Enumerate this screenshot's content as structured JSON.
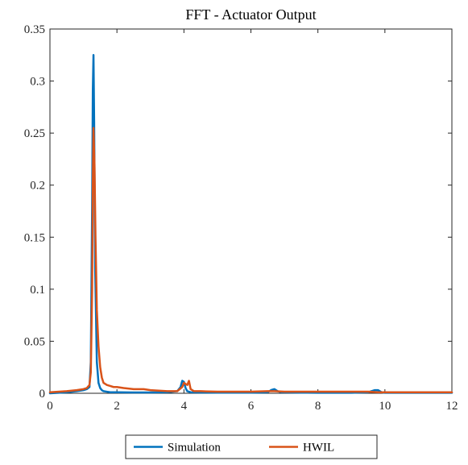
{
  "chart_data": {
    "type": "line",
    "title": "FFT - Actuator Output",
    "xlabel": "",
    "ylabel": "",
    "xlim": [
      0,
      12
    ],
    "ylim": [
      0,
      0.35
    ],
    "xticks": [
      0,
      2,
      4,
      6,
      8,
      10,
      12
    ],
    "yticks": [
      0,
      0.05,
      0.1,
      0.15,
      0.2,
      0.25,
      0.3,
      0.35
    ],
    "xtick_labels": [
      "0",
      "2",
      "4",
      "6",
      "8",
      "10",
      "12"
    ],
    "ytick_labels": [
      "0",
      "0.05",
      "0.1",
      "0.15",
      "0.2",
      "0.25",
      "0.3",
      "0.35"
    ],
    "grid": false,
    "legend_position": "bottom-outside",
    "series": [
      {
        "name": "Simulation",
        "color": "#0072BD",
        "x": [
          0,
          0.5,
          0.8,
          1.0,
          1.1,
          1.18,
          1.22,
          1.26,
          1.28,
          1.3,
          1.32,
          1.35,
          1.4,
          1.45,
          1.5,
          1.55,
          1.6,
          1.7,
          1.8,
          2.0,
          2.5,
          3.0,
          3.5,
          3.8,
          3.9,
          3.95,
          4.0,
          4.05,
          4.1,
          4.2,
          4.5,
          5.0,
          5.5,
          6.0,
          6.5,
          6.6,
          6.7,
          6.8,
          6.9,
          7.5,
          8.0,
          8.5,
          9.0,
          9.5,
          9.7,
          9.8,
          9.9,
          10.0,
          10.5,
          11.0,
          11.5,
          12.0
        ],
        "values": [
          0.0,
          0.001,
          0.002,
          0.003,
          0.004,
          0.006,
          0.03,
          0.18,
          0.29,
          0.325,
          0.26,
          0.12,
          0.03,
          0.01,
          0.005,
          0.003,
          0.002,
          0.0015,
          0.001,
          0.001,
          0.0008,
          0.0008,
          0.001,
          0.002,
          0.006,
          0.012,
          0.011,
          0.005,
          0.002,
          0.001,
          0.0008,
          0.0006,
          0.0006,
          0.0006,
          0.001,
          0.003,
          0.004,
          0.002,
          0.001,
          0.0006,
          0.0005,
          0.0005,
          0.0005,
          0.001,
          0.003,
          0.003,
          0.001,
          0.0005,
          0.0005,
          0.0005,
          0.0005,
          0.0005
        ]
      },
      {
        "name": "HWIL",
        "color": "#D95319",
        "x": [
          0,
          0.5,
          0.8,
          1.0,
          1.1,
          1.18,
          1.22,
          1.26,
          1.28,
          1.3,
          1.33,
          1.36,
          1.4,
          1.45,
          1.5,
          1.55,
          1.6,
          1.7,
          1.8,
          1.9,
          2.0,
          2.2,
          2.5,
          2.8,
          3.0,
          3.5,
          3.8,
          3.95,
          4.0,
          4.05,
          4.1,
          4.15,
          4.2,
          4.3,
          4.5,
          5.0,
          5.5,
          6.0,
          6.5,
          6.7,
          7.0,
          7.5,
          8.0,
          8.5,
          9.0,
          9.5,
          9.8,
          10.0,
          10.5,
          11.0,
          11.5,
          12.0
        ],
        "values": [
          0.001,
          0.002,
          0.003,
          0.004,
          0.005,
          0.008,
          0.02,
          0.1,
          0.2,
          0.255,
          0.22,
          0.15,
          0.08,
          0.045,
          0.025,
          0.015,
          0.01,
          0.008,
          0.007,
          0.006,
          0.006,
          0.005,
          0.004,
          0.004,
          0.003,
          0.002,
          0.002,
          0.006,
          0.01,
          0.009,
          0.008,
          0.012,
          0.004,
          0.002,
          0.002,
          0.0015,
          0.0015,
          0.0015,
          0.002,
          0.002,
          0.0015,
          0.0015,
          0.0015,
          0.0015,
          0.0015,
          0.0015,
          0.001,
          0.001,
          0.001,
          0.001,
          0.001,
          0.001
        ]
      }
    ]
  }
}
